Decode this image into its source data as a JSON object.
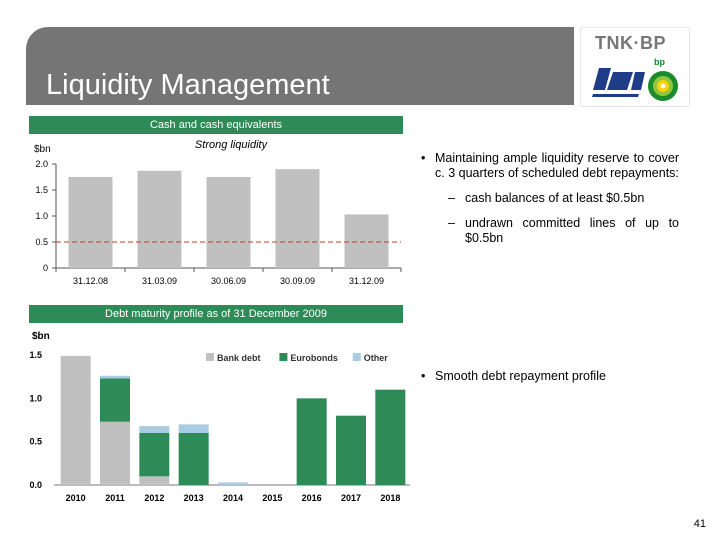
{
  "slide": {
    "title": "Liquidity Management",
    "logo_text": "TNK·BP",
    "bp_label": "bp",
    "page_number": "41"
  },
  "colors": {
    "header_gray": "#757575",
    "bar_gray": "#c0c0c0",
    "bar_green": "#2e8b57",
    "bar_blue": "#a9cce3",
    "threshold_line": "#c0392b"
  },
  "bullets": {
    "top": "Maintaining ample liquidity reserve to cover c. 3 quarters of scheduled debt repayments:",
    "sub1": "cash balances of at least $0.5bn",
    "sub2": "undrawn committed lines of up to $0.5bn",
    "bottom": "Smooth debt repayment profile"
  },
  "chart_data": [
    {
      "type": "bar",
      "banner": "Cash and cash equivalents",
      "title": "Strong liquidity",
      "ylabel": "$bn",
      "categories": [
        "31.12.08",
        "31.03.09",
        "30.06.09",
        "30.09.09",
        "31.12.09"
      ],
      "values": [
        1.75,
        1.87,
        1.75,
        1.9,
        1.03
      ],
      "ylim": [
        0,
        2.0
      ],
      "yticks": [
        "0",
        "0.5",
        "1.0",
        "1.5",
        "2.0"
      ],
      "reference_line": 0.5,
      "legend": "none",
      "grid": false
    },
    {
      "type": "bar",
      "stacked": true,
      "banner": "Debt maturity profile as of 31 December 2009",
      "ylabel": "$bn",
      "categories": [
        "2010",
        "2011",
        "2012",
        "2013",
        "2014",
        "2015",
        "2016",
        "2017",
        "2018"
      ],
      "ylim": [
        0,
        1.5
      ],
      "yticks": [
        "0.0",
        "0.5",
        "1.0",
        "1.5"
      ],
      "legend": "top-right",
      "grid": false,
      "series": [
        {
          "name": "Bank debt",
          "color": "#c0c0c0",
          "values": [
            1.49,
            0.73,
            0.1,
            0.0,
            0.0,
            0.0,
            0.0,
            0.0,
            0.0
          ]
        },
        {
          "name": "Eurobonds",
          "color": "#2e8b57",
          "values": [
            0.0,
            0.5,
            0.5,
            0.6,
            0.0,
            0.0,
            1.0,
            0.8,
            1.1
          ]
        },
        {
          "name": "Other",
          "color": "#a9cce3",
          "values": [
            0.0,
            0.03,
            0.08,
            0.1,
            0.03,
            0.0,
            0.0,
            0.0,
            0.0
          ]
        }
      ]
    }
  ]
}
